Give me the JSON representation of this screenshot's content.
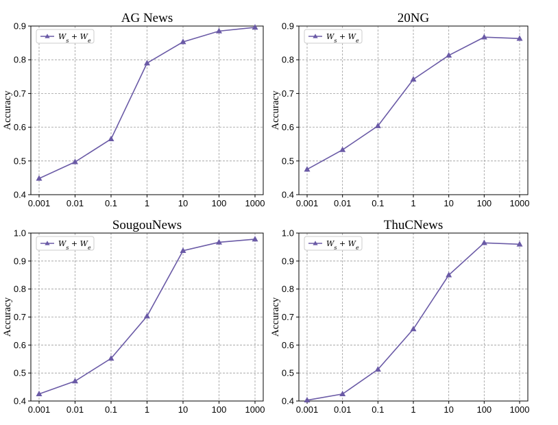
{
  "chart_data": [
    {
      "type": "line",
      "title": "AG News",
      "xlabel": "",
      "ylabel": "Accuracy",
      "categories": [
        "0.001",
        "0.01",
        "0.1",
        "1",
        "10",
        "100",
        "1000"
      ],
      "ylim": [
        0.4,
        0.9
      ],
      "yticks": [
        "0.4",
        "0.5",
        "0.6",
        "0.7",
        "0.8",
        "0.9"
      ],
      "grid": true,
      "legend_position": "top-left",
      "series": [
        {
          "name": "W_s + W_e",
          "values": [
            0.448,
            0.497,
            0.565,
            0.79,
            0.853,
            0.885,
            0.896
          ]
        }
      ]
    },
    {
      "type": "line",
      "title": "20NG",
      "xlabel": "",
      "ylabel": "Accuracy",
      "categories": [
        "0.001",
        "0.01",
        "0.1",
        "1",
        "10",
        "100",
        "1000"
      ],
      "ylim": [
        0.4,
        0.9
      ],
      "yticks": [
        "0.4",
        "0.5",
        "0.6",
        "0.7",
        "0.8",
        "0.9"
      ],
      "grid": true,
      "legend_position": "top-left",
      "series": [
        {
          "name": "W_s + W_e",
          "values": [
            0.475,
            0.533,
            0.604,
            0.742,
            0.813,
            0.867,
            0.863
          ]
        }
      ]
    },
    {
      "type": "line",
      "title": "SougouNews",
      "xlabel": "",
      "ylabel": "Accuracy",
      "categories": [
        "0.001",
        "0.01",
        "0.1",
        "1",
        "10",
        "100",
        "1000"
      ],
      "ylim": [
        0.4,
        1.0
      ],
      "yticks": [
        "0.4",
        "0.5",
        "0.6",
        "0.7",
        "0.8",
        "0.9",
        "1.0"
      ],
      "grid": true,
      "legend_position": "top-left",
      "series": [
        {
          "name": "W_s + W_e",
          "values": [
            0.425,
            0.471,
            0.552,
            0.703,
            0.937,
            0.967,
            0.978
          ]
        }
      ]
    },
    {
      "type": "line",
      "title": "ThuCNews",
      "xlabel": "",
      "ylabel": "Accuracy",
      "categories": [
        "0.001",
        "0.01",
        "0.1",
        "1",
        "10",
        "100",
        "1000"
      ],
      "ylim": [
        0.4,
        1.0
      ],
      "yticks": [
        "0.4",
        "0.5",
        "0.6",
        "0.7",
        "0.8",
        "0.9",
        "1.0"
      ],
      "grid": true,
      "legend_position": "top-left",
      "series": [
        {
          "name": "W_s + W_e",
          "values": [
            0.403,
            0.425,
            0.513,
            0.657,
            0.85,
            0.965,
            0.96
          ]
        }
      ]
    }
  ],
  "style": {
    "line_color": "#6a5aa6",
    "marker": "triangle-up"
  }
}
